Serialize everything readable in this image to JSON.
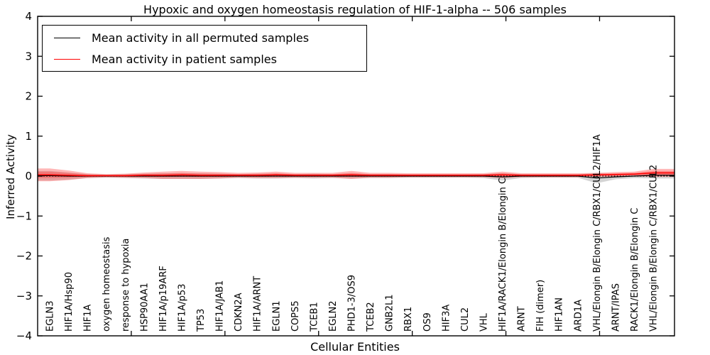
{
  "chart_data": {
    "type": "line",
    "title": "Hypoxic and oxygen homeostasis regulation of HIF-1-alpha -- 506 samples",
    "xlabel": "Cellular Entities",
    "ylabel": "Inferred Activity",
    "ylim": [
      -4,
      4
    ],
    "yticks": [
      "4",
      "3",
      "2",
      "1",
      "0",
      "−1",
      "−2",
      "−3",
      "−4"
    ],
    "ytick_values": [
      4,
      3,
      2,
      1,
      0,
      -1,
      -2,
      -3,
      -4
    ],
    "xlim": [
      0,
      34
    ],
    "xtick_values": [
      5,
      10,
      15,
      20,
      25,
      30
    ],
    "grid": false,
    "legend_position": "upper left",
    "reference_line": {
      "y": 0,
      "style": "dotted",
      "color": "#000000"
    },
    "categories": [
      "EGLN3",
      "HIF1A/Hsp90",
      "HIF1A",
      "oxygen homeostasis",
      "response to hypoxia",
      "HSP90AA1",
      "HIF1A/p19ARF",
      "HIF1A/p53",
      "TP53",
      "HIF1A/JAB1",
      "CDKN2A",
      "HIF1A/ARNT",
      "EGLN1",
      "COPS5",
      "TCEB1",
      "EGLN2",
      "PHD1-3/OS9",
      "TCEB2",
      "GNB2L1",
      "RBX1",
      "OS9",
      "HIF3A",
      "CUL2",
      "VHL",
      "HIF1A/RACK1/Elongin B/Elongin C",
      "ARNT",
      "FIH (dimer)",
      "HIF1AN",
      "ARD1A",
      "VHL/Elongin B/Elongin C/RBX1/CUL2/HIF1A",
      "ARNT/IPAS",
      "RACK1/Elongin B/Elongin C",
      "VHL/Elongin B/Elongin C/RBX1/CUL2"
    ],
    "series": [
      {
        "name": "Mean activity in all permuted samples",
        "color": "#000000",
        "band_color": "#aaaaaa",
        "values": [
          0.01,
          0,
          0,
          0,
          0,
          0,
          0,
          0,
          0,
          0,
          0,
          0,
          0,
          0,
          0,
          0,
          0,
          0,
          0,
          0,
          0,
          0,
          0,
          0,
          -0.02,
          0,
          0,
          0,
          0,
          -0.05,
          -0.02,
          0,
          0.02
        ],
        "band": [
          0.12,
          0.09,
          0.05,
          0.04,
          0.05,
          0.06,
          0.07,
          0.07,
          0.07,
          0.06,
          0.05,
          0.06,
          0.06,
          0.05,
          0.06,
          0.05,
          0.06,
          0.05,
          0.05,
          0.04,
          0.04,
          0.04,
          0.04,
          0.05,
          0.09,
          0.05,
          0.04,
          0.04,
          0.04,
          0.13,
          0.06,
          0.05,
          0.08
        ]
      },
      {
        "name": "Mean activity in patient samples",
        "color": "#ff0000",
        "band_color": "#ff4c4c",
        "values": [
          0.03,
          0.02,
          0.01,
          0.01,
          0.01,
          0.02,
          0.02,
          0.03,
          0.02,
          0.02,
          0.02,
          0.02,
          0.03,
          0.02,
          0.02,
          0.02,
          0.03,
          0.02,
          0.02,
          0.02,
          0.02,
          0.02,
          0.02,
          0.02,
          0.03,
          0.02,
          0.02,
          0.02,
          0.02,
          0.03,
          0.04,
          0.05,
          0.08
        ],
        "band": [
          0.16,
          0.12,
          0.06,
          0.04,
          0.05,
          0.07,
          0.09,
          0.1,
          0.09,
          0.08,
          0.06,
          0.07,
          0.08,
          0.06,
          0.06,
          0.06,
          0.1,
          0.06,
          0.06,
          0.05,
          0.05,
          0.05,
          0.05,
          0.05,
          0.08,
          0.05,
          0.05,
          0.05,
          0.05,
          0.05,
          0.06,
          0.06,
          0.1
        ]
      }
    ]
  },
  "legend": {
    "item1": "Mean activity in all permuted samples",
    "item2": "Mean activity in patient samples"
  }
}
